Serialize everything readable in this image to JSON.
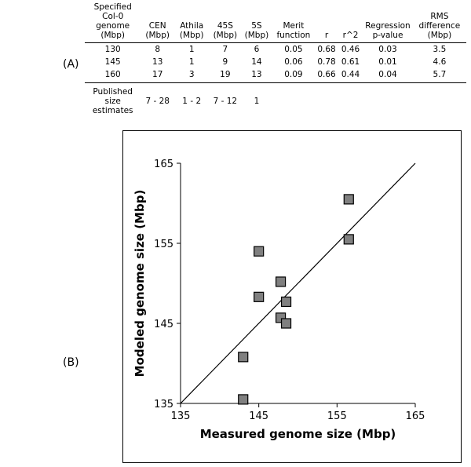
{
  "panel_a_label": "(A)",
  "panel_b_label": "(B)",
  "table": {
    "headers": [
      "Specified Col-0 genome (Mbp)",
      "CEN (Mbp)",
      "Athila (Mbp)",
      "45S (Mbp)",
      "5S (Mbp)",
      "Merit function",
      "r",
      "r^2",
      "Regression p-value",
      "RMS difference (Mbp)"
    ],
    "rows": [
      [
        "130",
        "8",
        "1",
        "7",
        "6",
        "0.05",
        "0.68",
        "0.46",
        "0.03",
        "3.5"
      ],
      [
        "145",
        "13",
        "1",
        "9",
        "14",
        "0.06",
        "0.78",
        "0.61",
        "0.01",
        "4.6"
      ],
      [
        "160",
        "17",
        "3",
        "19",
        "13",
        "0.09",
        "0.66",
        "0.44",
        "0.04",
        "5.7"
      ]
    ],
    "published_row": [
      "Published size estimates",
      "7 - 28",
      "1 - 2",
      "7 - 12",
      "1",
      "",
      "",
      "",
      "",
      ""
    ]
  },
  "chart_data": {
    "type": "scatter",
    "xlabel": "Measured genome size (Mbp)",
    "ylabel": "Modeled genome size (Mbp)",
    "xlim": [
      135,
      165
    ],
    "ylim": [
      135,
      165
    ],
    "xticks": [
      135,
      145,
      155,
      165
    ],
    "yticks": [
      135,
      145,
      155,
      165
    ],
    "grid": false,
    "reference_line": "y = x",
    "marker": {
      "shape": "square",
      "fill": "#808080",
      "stroke": "#000000"
    },
    "points": [
      {
        "x": 143.0,
        "y": 135.5
      },
      {
        "x": 143.0,
        "y": 140.8
      },
      {
        "x": 145.0,
        "y": 154.0
      },
      {
        "x": 145.0,
        "y": 148.3
      },
      {
        "x": 147.8,
        "y": 150.2
      },
      {
        "x": 147.8,
        "y": 145.7
      },
      {
        "x": 148.5,
        "y": 147.7
      },
      {
        "x": 148.5,
        "y": 145.0
      },
      {
        "x": 156.5,
        "y": 160.5
      },
      {
        "x": 156.5,
        "y": 155.5
      }
    ]
  }
}
